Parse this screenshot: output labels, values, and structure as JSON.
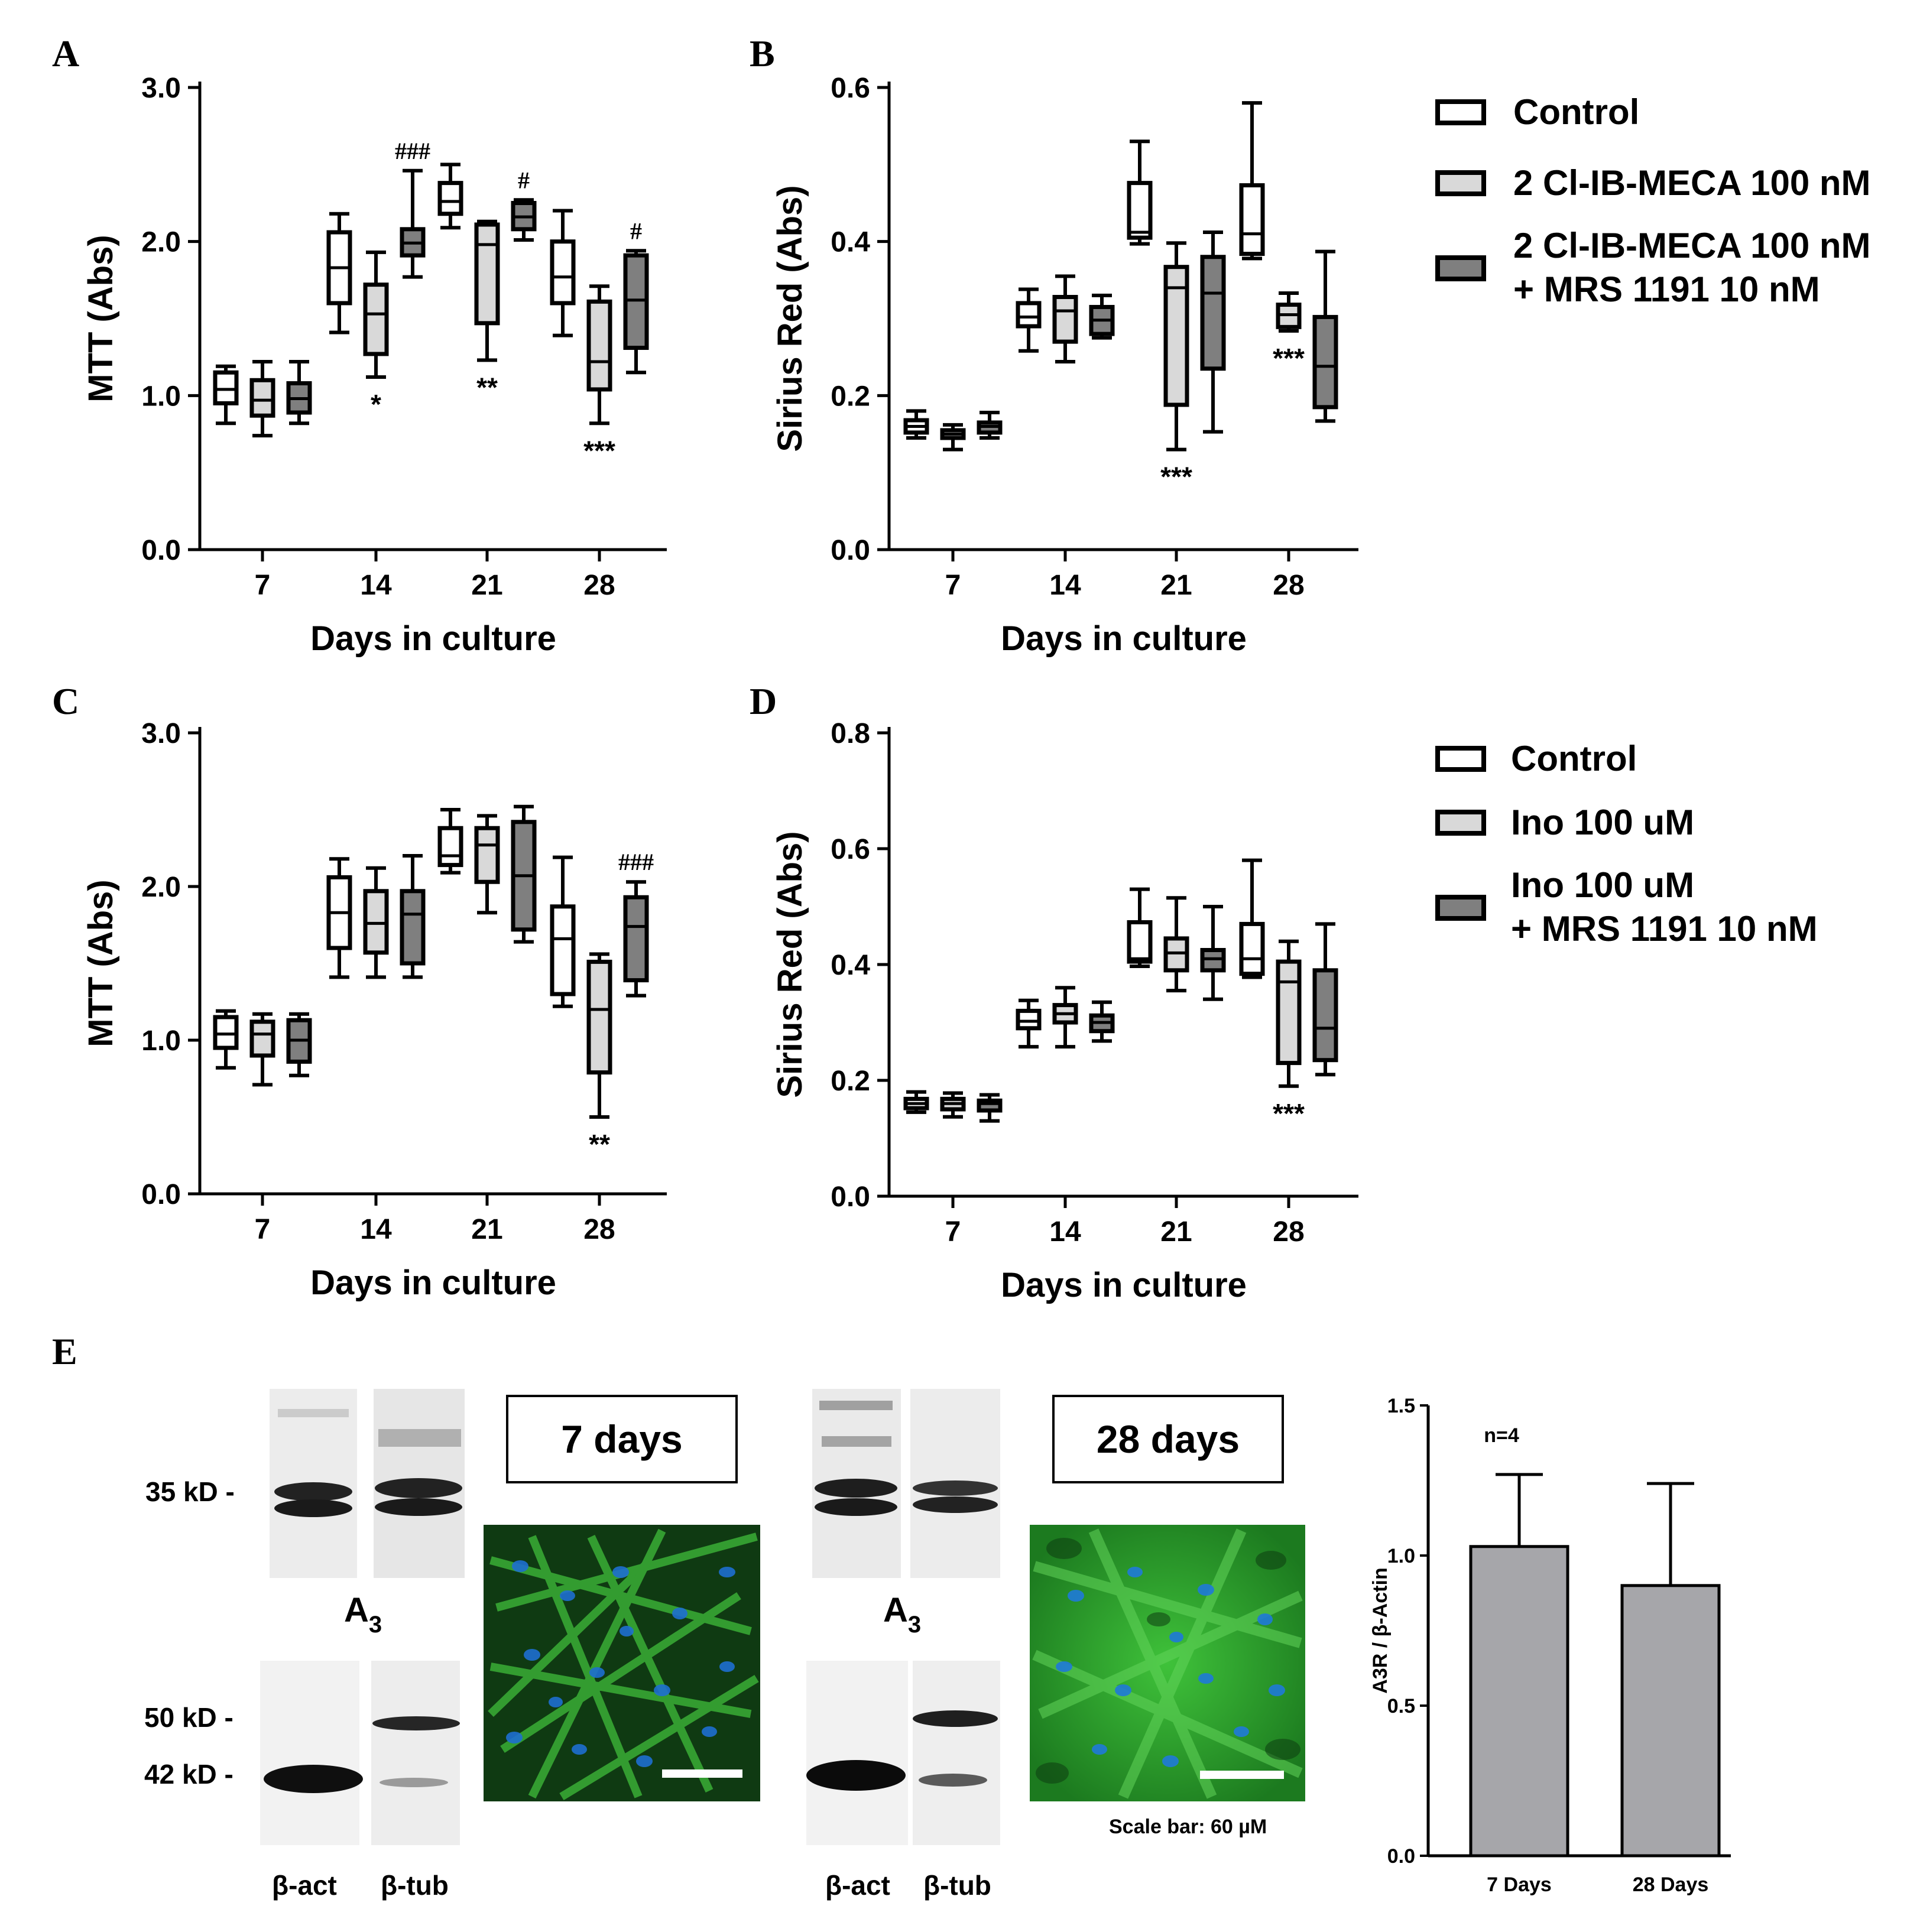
{
  "panel_labels": {
    "a": "A",
    "b": "B",
    "c": "C",
    "d": "D",
    "e": "E"
  },
  "chart_data": [
    {
      "id": "A",
      "type": "boxplot",
      "xlabel": "Days in culture",
      "ylabel": "MTT (Abs)",
      "categories": [
        "7",
        "14",
        "21",
        "28"
      ],
      "yticks": [
        "0.0",
        "1.0",
        "2.0",
        "3.0"
      ],
      "ylim": [
        0,
        3
      ],
      "series": [
        {
          "name": "Control",
          "color": "#ffffff",
          "boxes": [
            [
              0.82,
              0.95,
              1.04,
              1.15,
              1.19
            ],
            [
              1.41,
              1.6,
              1.83,
              2.06,
              2.18
            ],
            [
              2.09,
              2.18,
              2.26,
              2.38,
              2.5
            ],
            [
              1.39,
              1.6,
              1.77,
              2.0,
              2.2
            ]
          ]
        },
        {
          "name": "2 Cl-IB-MECA 100 nM",
          "color": "#d9d9d9",
          "boxes": [
            [
              0.74,
              0.87,
              0.97,
              1.1,
              1.22
            ],
            [
              1.12,
              1.27,
              1.53,
              1.72,
              1.93
            ],
            [
              1.23,
              1.47,
              1.98,
              2.11,
              2.13
            ],
            [
              0.82,
              1.04,
              1.22,
              1.61,
              1.71
            ]
          ]
        },
        {
          "name": "2 Cl-IB-MECA 100 nM + MRS 1191 10 nM",
          "color": "#7f7f7f",
          "boxes": [
            [
              0.82,
              0.89,
              0.98,
              1.08,
              1.22
            ],
            [
              1.77,
              1.91,
              1.99,
              2.08,
              2.46
            ],
            [
              2.01,
              2.08,
              2.16,
              2.25,
              2.27
            ],
            [
              1.15,
              1.31,
              1.62,
              1.91,
              1.94
            ]
          ]
        }
      ],
      "annotations": [
        {
          "text": "*",
          "cat": 1,
          "series": 1,
          "pos": "below",
          "y": 1.12
        },
        {
          "text": "###",
          "cat": 1,
          "series": 2,
          "pos": "above",
          "y": 2.46
        },
        {
          "text": "**",
          "cat": 2,
          "series": 1,
          "pos": "below",
          "y": 1.23
        },
        {
          "text": "#",
          "cat": 2,
          "series": 2,
          "pos": "above",
          "y": 2.27
        },
        {
          "text": "***",
          "cat": 3,
          "series": 1,
          "pos": "below",
          "y": 0.82
        },
        {
          "text": "#",
          "cat": 3,
          "series": 2,
          "pos": "above",
          "y": 1.94
        }
      ]
    },
    {
      "id": "B",
      "type": "boxplot",
      "xlabel": "Days in culture",
      "ylabel": "Sirius Red (Abs)",
      "categories": [
        "7",
        "14",
        "21",
        "28"
      ],
      "yticks": [
        "0.0",
        "0.2",
        "0.4",
        "0.6"
      ],
      "ylim": [
        0,
        0.6
      ],
      "series": [
        {
          "name": "Control",
          "color": "#ffffff",
          "boxes": [
            [
              0.145,
              0.152,
              0.16,
              0.168,
              0.18
            ],
            [
              0.258,
              0.29,
              0.302,
              0.32,
              0.338
            ],
            [
              0.397,
              0.405,
              0.412,
              0.476,
              0.53
            ],
            [
              0.378,
              0.384,
              0.41,
              0.473,
              0.58
            ]
          ]
        },
        {
          "name": "2 Cl-IB-MECA 100 nM",
          "color": "#d9d9d9",
          "boxes": [
            [
              0.13,
              0.145,
              0.15,
              0.155,
              0.162
            ],
            [
              0.244,
              0.27,
              0.31,
              0.328,
              0.355
            ],
            [
              0.13,
              0.188,
              0.34,
              0.367,
              0.398
            ]
          ]
        },
        {
          "name": "2 Cl-IB-MECA 100 nM + MRS 1191 10 nM",
          "color": "#7f7f7f",
          "boxes": [
            [
              0.145,
              0.152,
              0.16,
              0.165,
              0.178
            ],
            [
              0.275,
              0.28,
              0.298,
              0.315,
              0.33
            ],
            [
              0.153,
              0.235,
              0.333,
              0.38,
              0.412
            ],
            [
              0.167,
              0.185,
              0.238,
              0.302,
              0.387
            ]
          ]
        }
      ],
      "extra": {
        "cat": 3,
        "series": 1,
        "box": [
          0.284,
          0.289,
          0.305,
          0.318,
          0.333
        ]
      },
      "annotations": [
        {
          "text": "***",
          "cat": 2,
          "series": 1,
          "pos": "below",
          "y": 0.13
        },
        {
          "text": "***",
          "cat": 3,
          "series": 1,
          "pos": "below",
          "y": 0.284
        }
      ]
    },
    {
      "id": "C",
      "type": "boxplot",
      "xlabel": "Days in culture",
      "ylabel": "MTT (Abs)",
      "categories": [
        "7",
        "14",
        "21",
        "28"
      ],
      "yticks": [
        "0.0",
        "1.0",
        "2.0",
        "3.0"
      ],
      "ylim": [
        0,
        3
      ],
      "series": [
        {
          "name": "Control",
          "color": "#ffffff",
          "boxes": [
            [
              0.82,
              0.95,
              1.04,
              1.15,
              1.19
            ],
            [
              1.41,
              1.6,
              1.83,
              2.06,
              2.18
            ],
            [
              2.09,
              2.14,
              2.2,
              2.38,
              2.5
            ],
            [
              1.22,
              1.3,
              1.66,
              1.87,
              2.19
            ]
          ]
        },
        {
          "name": "Ino 100 uM",
          "color": "#d9d9d9",
          "boxes": [
            [
              0.71,
              0.9,
              1.04,
              1.12,
              1.17
            ],
            [
              1.41,
              1.57,
              1.76,
              1.97,
              2.12
            ],
            [
              1.83,
              2.03,
              2.27,
              2.38,
              2.46
            ],
            [
              0.5,
              0.79,
              1.2,
              1.51,
              1.56
            ]
          ]
        },
        {
          "name": "Ino 100 uM + MRS 1191 10 nM",
          "color": "#7f7f7f",
          "boxes": [
            [
              0.77,
              0.86,
              1.0,
              1.13,
              1.17
            ],
            [
              1.41,
              1.5,
              1.82,
              1.97,
              2.2
            ],
            [
              1.64,
              1.72,
              2.07,
              2.42,
              2.52
            ],
            [
              1.29,
              1.39,
              1.74,
              1.93,
              2.03
            ]
          ]
        }
      ],
      "annotations": [
        {
          "text": "**",
          "cat": 3,
          "series": 1,
          "pos": "below",
          "y": 0.5
        },
        {
          "text": "###",
          "cat": 3,
          "series": 2,
          "pos": "above",
          "y": 2.03
        }
      ]
    },
    {
      "id": "D",
      "type": "boxplot",
      "xlabel": "Days in culture",
      "ylabel": "Sirius Red (Abs)",
      "categories": [
        "7",
        "14",
        "21",
        "28"
      ],
      "yticks": [
        "0.0",
        "0.2",
        "0.4",
        "0.6",
        "0.8"
      ],
      "ylim": [
        0,
        0.8
      ],
      "series": [
        {
          "name": "Control",
          "color": "#ffffff",
          "boxes": [
            [
              0.145,
              0.152,
              0.16,
              0.168,
              0.18
            ],
            [
              0.258,
              0.29,
              0.302,
              0.32,
              0.338
            ],
            [
              0.397,
              0.405,
              0.41,
              0.473,
              0.53
            ],
            [
              0.378,
              0.384,
              0.41,
              0.47,
              0.58
            ]
          ]
        },
        {
          "name": "Ino 100 uM",
          "color": "#d9d9d9",
          "boxes": [
            [
              0.137,
              0.15,
              0.16,
              0.168,
              0.178
            ],
            [
              0.258,
              0.3,
              0.315,
              0.33,
              0.36
            ],
            [
              0.355,
              0.39,
              0.42,
              0.445,
              0.515
            ],
            [
              0.19,
              0.23,
              0.37,
              0.405,
              0.44
            ]
          ]
        },
        {
          "name": "Ino 100 uM + MRS 1191 10 nM",
          "color": "#7f7f7f",
          "boxes": [
            [
              0.13,
              0.148,
              0.16,
              0.165,
              0.175
            ],
            [
              0.268,
              0.285,
              0.3,
              0.312,
              0.335
            ],
            [
              0.34,
              0.39,
              0.41,
              0.425,
              0.5
            ],
            [
              0.21,
              0.235,
              0.29,
              0.39,
              0.47
            ]
          ]
        }
      ],
      "annotations": [
        {
          "text": "***",
          "cat": 3,
          "series": 1,
          "pos": "below",
          "y": 0.19
        }
      ]
    },
    {
      "id": "E",
      "type": "bar",
      "categories": [
        "7 Days",
        "28 Days"
      ],
      "values": [
        1.03,
        0.9
      ],
      "errors": [
        0.24,
        0.34
      ],
      "ylabel": "A3R / β-Actin",
      "yticks": [
        "0.0",
        "0.5",
        "1.0",
        "1.5"
      ],
      "ylim": [
        0,
        1.5
      ],
      "note": "n=4",
      "bar_color": "#a6a6aa"
    }
  ],
  "legend_ab": {
    "items": [
      "Control",
      "2 Cl-IB-MECA 100 nM",
      "2 Cl-IB-MECA 100 nM",
      "+ MRS 1191 10 nM"
    ]
  },
  "legend_cd": {
    "items": [
      "Control",
      "Ino 100 uM",
      "Ino 100 uM",
      "+ MRS 1191 10 nM"
    ]
  },
  "blots": {
    "kd35": "35 kD -",
    "kd50": "50 kD -",
    "kd42": "42 kD -",
    "a3": "A",
    "a3_sub": "3",
    "bact": "β-act",
    "btub": "β-tub",
    "day7": "7 days",
    "day28": "28 days",
    "scale": "Scale bar: 60 µM"
  }
}
